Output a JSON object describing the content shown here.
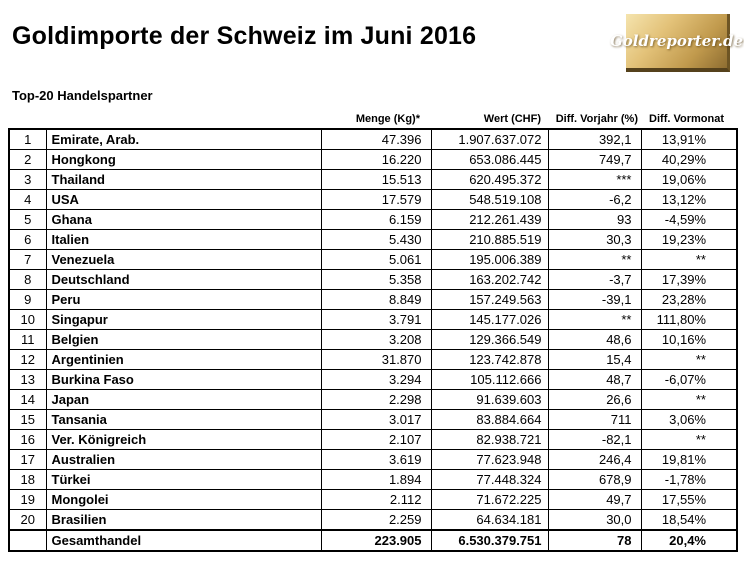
{
  "logo": {
    "text": "Goldreporter.de",
    "gold_light": "#f5e4ae",
    "gold_dark": "#8e6d31"
  },
  "chart_data": {
    "type": "table",
    "title": "Goldimporte der Schweiz im Juni 2016",
    "subtitle": "Top-20 Handelspartner",
    "col_headers": [
      "Menge (Kg)*",
      "Wert (CHF)",
      "Diff. Vorjahr (%)",
      "Diff. Vormonat"
    ],
    "rows": [
      {
        "rank": "1",
        "country": "Emirate, Arab.",
        "menge": "47.396",
        "wert": "1.907.637.072",
        "diff_vorjahr": "392,1",
        "diff_vormonat": "13,91%"
      },
      {
        "rank": "2",
        "country": "Hongkong",
        "menge": "16.220",
        "wert": "653.086.445",
        "diff_vorjahr": "749,7",
        "diff_vormonat": "40,29%"
      },
      {
        "rank": "3",
        "country": "Thailand",
        "menge": "15.513",
        "wert": "620.495.372",
        "diff_vorjahr": "***",
        "diff_vormonat": "19,06%"
      },
      {
        "rank": "4",
        "country": "USA",
        "menge": "17.579",
        "wert": "548.519.108",
        "diff_vorjahr": "-6,2",
        "diff_vormonat": "13,12%"
      },
      {
        "rank": "5",
        "country": "Ghana",
        "menge": "6.159",
        "wert": "212.261.439",
        "diff_vorjahr": "93",
        "diff_vormonat": "-4,59%"
      },
      {
        "rank": "6",
        "country": "Italien",
        "menge": "5.430",
        "wert": "210.885.519",
        "diff_vorjahr": "30,3",
        "diff_vormonat": "19,23%"
      },
      {
        "rank": "7",
        "country": "Venezuela",
        "menge": "5.061",
        "wert": "195.006.389",
        "diff_vorjahr": "**",
        "diff_vormonat": "**"
      },
      {
        "rank": "8",
        "country": "Deutschland",
        "menge": "5.358",
        "wert": "163.202.742",
        "diff_vorjahr": "-3,7",
        "diff_vormonat": "17,39%"
      },
      {
        "rank": "9",
        "country": "Peru",
        "menge": "8.849",
        "wert": "157.249.563",
        "diff_vorjahr": "-39,1",
        "diff_vormonat": "23,28%"
      },
      {
        "rank": "10",
        "country": "Singapur",
        "menge": "3.791",
        "wert": "145.177.026",
        "diff_vorjahr": "**",
        "diff_vormonat": "111,80%"
      },
      {
        "rank": "11",
        "country": "Belgien",
        "menge": "3.208",
        "wert": "129.366.549",
        "diff_vorjahr": "48,6",
        "diff_vormonat": "10,16%"
      },
      {
        "rank": "12",
        "country": "Argentinien",
        "menge": "31.870",
        "wert": "123.742.878",
        "diff_vorjahr": "15,4",
        "diff_vormonat": "**"
      },
      {
        "rank": "13",
        "country": "Burkina Faso",
        "menge": "3.294",
        "wert": "105.112.666",
        "diff_vorjahr": "48,7",
        "diff_vormonat": "-6,07%"
      },
      {
        "rank": "14",
        "country": "Japan",
        "menge": "2.298",
        "wert": "91.639.603",
        "diff_vorjahr": "26,6",
        "diff_vormonat": "**"
      },
      {
        "rank": "15",
        "country": "Tansania",
        "menge": "3.017",
        "wert": "83.884.664",
        "diff_vorjahr": "711",
        "diff_vormonat": "3,06%"
      },
      {
        "rank": "16",
        "country": "Ver. Königreich",
        "menge": "2.107",
        "wert": "82.938.721",
        "diff_vorjahr": "-82,1",
        "diff_vormonat": "**"
      },
      {
        "rank": "17",
        "country": "Australien",
        "menge": "3.619",
        "wert": "77.623.948",
        "diff_vorjahr": "246,4",
        "diff_vormonat": "19,81%"
      },
      {
        "rank": "18",
        "country": "Türkei",
        "menge": "1.894",
        "wert": "77.448.324",
        "diff_vorjahr": "678,9",
        "diff_vormonat": "-1,78%"
      },
      {
        "rank": "19",
        "country": "Mongolei",
        "menge": "2.112",
        "wert": "71.672.225",
        "diff_vorjahr": "49,7",
        "diff_vormonat": "17,55%"
      },
      {
        "rank": "20",
        "country": "Brasilien",
        "menge": "2.259",
        "wert": "64.634.181",
        "diff_vorjahr": "30,0",
        "diff_vormonat": "18,54%"
      }
    ],
    "total_row": {
      "label": "Gesamthandel",
      "menge": "223.905",
      "wert": "6.530.379.751",
      "diff_vorjahr": "78",
      "diff_vormonat": "20,4%"
    }
  }
}
